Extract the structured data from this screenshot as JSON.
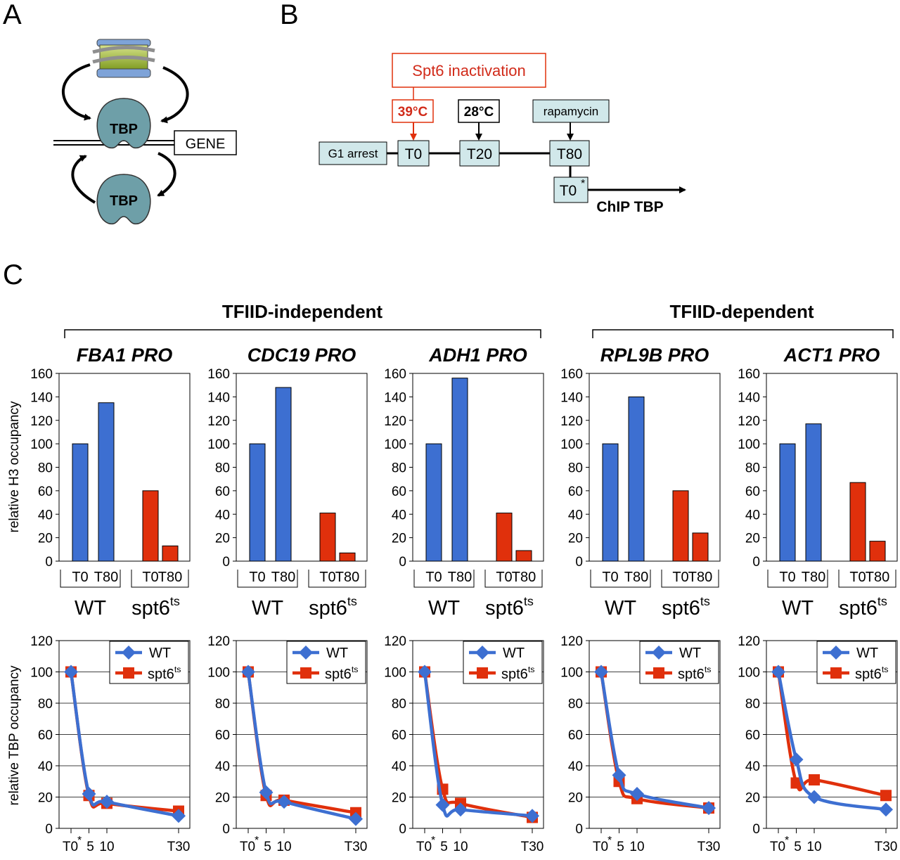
{
  "panel_letters": {
    "a": "A",
    "b": "B",
    "c": "C"
  },
  "colors": {
    "wt": "#3d6fd1",
    "spt6": "#e0300c",
    "protein_fill": "#6e9fa8",
    "box_fill": "#d1e8ea",
    "nucleosome_core": "#a8c43a",
    "nucleosome_cap": "#7ea3d8",
    "red_text": "#d12b1a"
  },
  "panel_a": {
    "protein_label": "TBP",
    "gene_label": "GENE"
  },
  "panel_b": {
    "inactivation_label": "Spt6 inactivation",
    "temp_hot": "39°C",
    "temp_cool": "28°C",
    "drug_label": "rapamycin",
    "arrest_label": "G1 arrest",
    "t0_label": "T0",
    "t20_label": "T20",
    "t80_label": "T80",
    "t0star_label": "T0",
    "t0star_marker": "*",
    "chip_label": "ChIP TBP"
  },
  "panel_c": {
    "group_independent": "TFIID-independent",
    "group_dependent": "TFIID-dependent",
    "h3_ylabel": "relative H3 occupancy",
    "tbp_ylabel": "relative TBP occupancy",
    "bar_tick_labels": [
      "T0",
      "T80",
      "T0",
      "T80"
    ],
    "strain_wt": "WT",
    "strain_mut_base": "spt6",
    "strain_mut_sup": "ts",
    "line_x_labels": [
      "T0",
      "5",
      "10",
      "T30"
    ],
    "line_x_star": "*",
    "legend_wt": "WT",
    "legend_mut_base": "spt6",
    "legend_mut_sup": "ts"
  },
  "chart_data": [
    {
      "type": "bar",
      "title": "FBA1 PRO",
      "ylabel": "relative H3 occupancy",
      "ylim": [
        0,
        160
      ],
      "yticks": [
        0,
        20,
        40,
        60,
        80,
        100,
        120,
        140,
        160
      ],
      "grid": false,
      "categories": [
        "T0",
        "T80"
      ],
      "series": [
        {
          "name": "WT",
          "values": [
            100,
            135
          ]
        },
        {
          "name": "spt6ts",
          "values": [
            60,
            13
          ]
        }
      ]
    },
    {
      "type": "bar",
      "title": "CDC19 PRO",
      "ylim": [
        0,
        160
      ],
      "yticks": [
        0,
        20,
        40,
        60,
        80,
        100,
        120,
        140,
        160
      ],
      "grid": false,
      "categories": [
        "T0",
        "T80"
      ],
      "series": [
        {
          "name": "WT",
          "values": [
            100,
            148
          ]
        },
        {
          "name": "spt6ts",
          "values": [
            41,
            7
          ]
        }
      ]
    },
    {
      "type": "bar",
      "title": "ADH1 PRO",
      "ylim": [
        0,
        160
      ],
      "yticks": [
        0,
        20,
        40,
        60,
        80,
        100,
        120,
        140,
        160
      ],
      "grid": false,
      "categories": [
        "T0",
        "T80"
      ],
      "series": [
        {
          "name": "WT",
          "values": [
            100,
            156
          ]
        },
        {
          "name": "spt6ts",
          "values": [
            41,
            9
          ]
        }
      ]
    },
    {
      "type": "bar",
      "title": "RPL9B PRO",
      "ylim": [
        0,
        160
      ],
      "yticks": [
        0,
        20,
        40,
        60,
        80,
        100,
        120,
        140,
        160
      ],
      "grid": false,
      "categories": [
        "T0",
        "T80"
      ],
      "series": [
        {
          "name": "WT",
          "values": [
            100,
            140
          ]
        },
        {
          "name": "spt6ts",
          "values": [
            60,
            24
          ]
        }
      ]
    },
    {
      "type": "bar",
      "title": "ACT1 PRO",
      "ylim": [
        0,
        160
      ],
      "yticks": [
        0,
        20,
        40,
        60,
        80,
        100,
        120,
        140,
        160
      ],
      "grid": false,
      "categories": [
        "T0",
        "T80"
      ],
      "series": [
        {
          "name": "WT",
          "values": [
            100,
            117
          ]
        },
        {
          "name": "spt6ts",
          "values": [
            67,
            17
          ]
        }
      ]
    },
    {
      "type": "line",
      "ylabel": "relative TBP occupancy",
      "ylim": [
        0,
        120
      ],
      "yticks": [
        0,
        20,
        40,
        60,
        80,
        100,
        120
      ],
      "grid": true,
      "legend": "top-right",
      "x": [
        0,
        5,
        10,
        30
      ],
      "series": [
        {
          "name": "WT",
          "values": [
            100,
            22,
            17,
            8
          ]
        },
        {
          "name": "spt6ts",
          "values": [
            100,
            21,
            16,
            11
          ]
        }
      ]
    },
    {
      "type": "line",
      "ylim": [
        0,
        120
      ],
      "yticks": [
        0,
        20,
        40,
        60,
        80,
        100,
        120
      ],
      "grid": true,
      "legend": "top-right",
      "x": [
        0,
        5,
        10,
        30
      ],
      "series": [
        {
          "name": "WT",
          "values": [
            100,
            23,
            17,
            6
          ]
        },
        {
          "name": "spt6ts",
          "values": [
            100,
            21,
            18,
            10
          ]
        }
      ]
    },
    {
      "type": "line",
      "ylim": [
        0,
        120
      ],
      "yticks": [
        0,
        20,
        40,
        60,
        80,
        100,
        120
      ],
      "grid": true,
      "legend": "top-right",
      "x": [
        0,
        5,
        10,
        30
      ],
      "series": [
        {
          "name": "WT",
          "values": [
            100,
            15,
            12,
            8
          ]
        },
        {
          "name": "spt6ts",
          "values": [
            100,
            25,
            16,
            7
          ]
        }
      ]
    },
    {
      "type": "line",
      "ylim": [
        0,
        120
      ],
      "yticks": [
        0,
        20,
        40,
        60,
        80,
        100,
        120
      ],
      "grid": true,
      "legend": "top-right",
      "x": [
        0,
        5,
        10,
        30
      ],
      "series": [
        {
          "name": "WT",
          "values": [
            100,
            34,
            22,
            13
          ]
        },
        {
          "name": "spt6ts",
          "values": [
            100,
            30,
            19,
            13
          ]
        }
      ]
    },
    {
      "type": "line",
      "ylim": [
        0,
        120
      ],
      "yticks": [
        0,
        20,
        40,
        60,
        80,
        100,
        120
      ],
      "grid": true,
      "legend": "top-right",
      "x": [
        0,
        5,
        10,
        30
      ],
      "series": [
        {
          "name": "WT",
          "values": [
            100,
            44,
            20,
            12
          ]
        },
        {
          "name": "spt6ts",
          "values": [
            100,
            29,
            31,
            21
          ]
        }
      ]
    }
  ]
}
